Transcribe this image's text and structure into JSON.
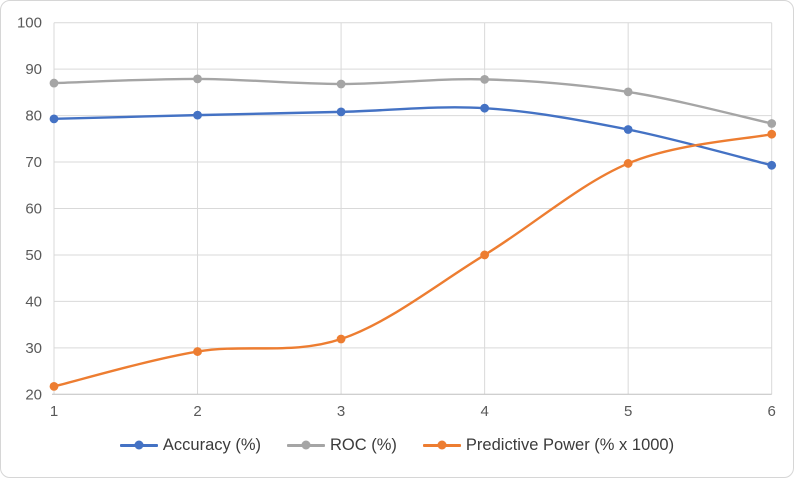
{
  "chart_data": {
    "type": "line",
    "title": "",
    "xlabel": "",
    "ylabel": "",
    "x": [
      1,
      2,
      3,
      4,
      5,
      6
    ],
    "xticks": [
      "1",
      "2",
      "3",
      "4",
      "5",
      "6"
    ],
    "yticks": [
      20,
      30,
      40,
      50,
      60,
      70,
      80,
      90,
      100
    ],
    "ylim": [
      20,
      100
    ],
    "grid": true,
    "smooth": true,
    "legend_position": "bottom",
    "series": [
      {
        "name": "Accuracy (%)",
        "color": "#4472C4",
        "values": [
          79.3,
          80.1,
          80.8,
          81.6,
          77.0,
          69.3
        ]
      },
      {
        "name": "ROC (%)",
        "color": "#A5A5A5",
        "values": [
          87.0,
          87.9,
          86.8,
          87.8,
          85.1,
          78.3
        ]
      },
      {
        "name": "Predictive Power (% x 1000)",
        "color": "#ED7D31",
        "values": [
          21.7,
          29.2,
          31.9,
          50.0,
          69.7,
          76.0
        ]
      }
    ]
  },
  "colors": {
    "gridline": "#d9d9d9",
    "axis_line": "#bfbfbf",
    "tick_label": "#595959",
    "legend_text": "#3b3b3b",
    "background": "#ffffff",
    "frame_border": "#d6d6d6"
  }
}
